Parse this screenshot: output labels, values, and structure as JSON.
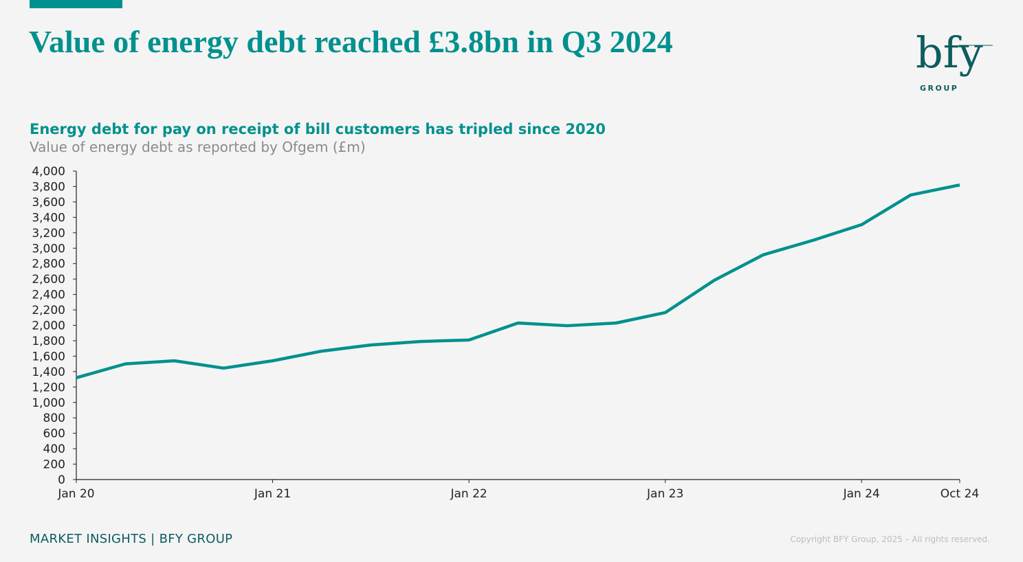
{
  "header": {
    "title": "Value of energy debt reached £3.8bn in Q3 2024",
    "logo_text": "bfy",
    "logo_subtext": "GROUP"
  },
  "colors": {
    "accent": "#00918e",
    "brand_dark": "#0d5c5e",
    "line": "#00918e"
  },
  "chart_data": {
    "type": "line",
    "title": "Energy debt for pay on receipt of bill customers has tripled since 2020",
    "subtitle": "Value of energy debt as reported by Ofgem (£m)",
    "xlabel": "",
    "ylabel": "",
    "ylim": [
      0,
      4000
    ],
    "y_ticks": [
      "0",
      "200",
      "400",
      "600",
      "800",
      "1,000",
      "1,200",
      "1,400",
      "1,600",
      "1,800",
      "2,000",
      "2,200",
      "2,400",
      "2,600",
      "2,800",
      "3,000",
      "3,200",
      "3,400",
      "3,600",
      "3,800",
      "4,000"
    ],
    "x_tick_labels": [
      "Jan 20",
      "Jan 21",
      "Jan 22",
      "Jan 23",
      "Jan 24",
      "Oct 24"
    ],
    "x_tick_index": [
      0,
      4,
      8,
      12,
      16,
      18
    ],
    "x": [
      "Jan 20",
      "Apr 20",
      "Jul 20",
      "Oct 20",
      "Jan 21",
      "Apr 21",
      "Jul 21",
      "Oct 21",
      "Jan 22",
      "Apr 22",
      "Jul 22",
      "Oct 22",
      "Jan 23",
      "Apr 23",
      "Jul 23",
      "Oct 23",
      "Jan 24",
      "Apr 24",
      "Oct 24"
    ],
    "values": [
      1320,
      1500,
      1540,
      1445,
      1540,
      1665,
      1745,
      1790,
      1810,
      2030,
      1995,
      2030,
      2165,
      2585,
      2915,
      3100,
      3305,
      3690,
      3820
    ],
    "grid": false,
    "legend": "none"
  },
  "footer": {
    "left": "MARKET INSIGHTS | BFY GROUP",
    "right": "Copyright BFY Group, 2025 – All rights reserved."
  }
}
